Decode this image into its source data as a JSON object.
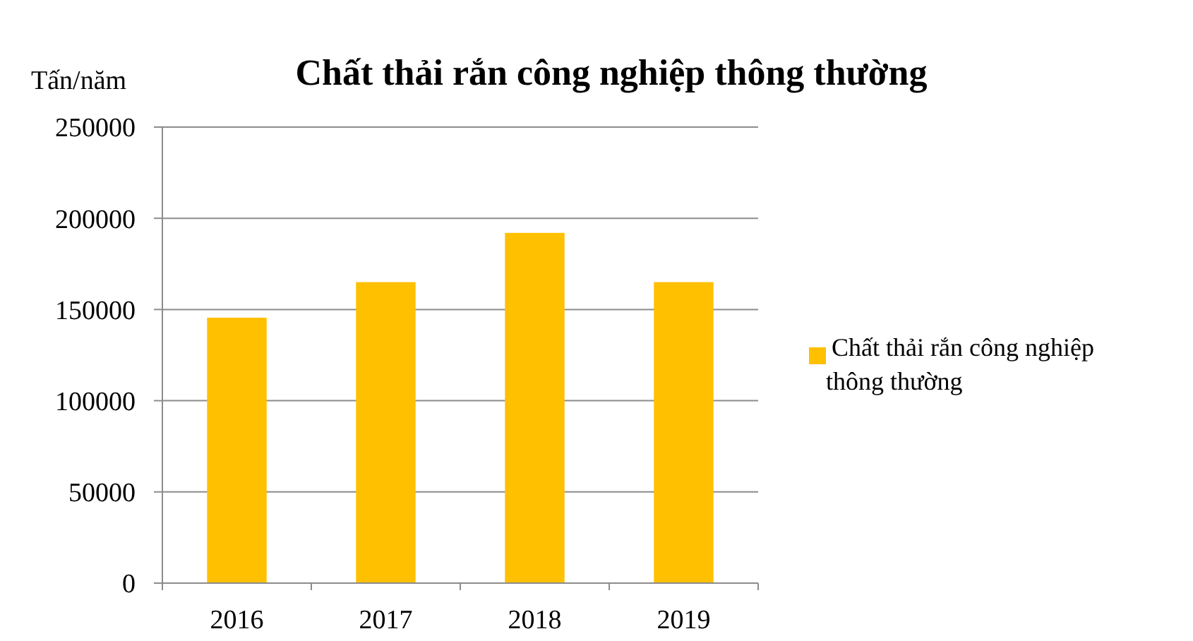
{
  "chart_data": {
    "type": "bar",
    "title": "Chất thải rắn công nghiệp thông thường",
    "ylabel": "Tấn/năm",
    "categories": [
      "2016",
      "2017",
      "2018",
      "2019"
    ],
    "series": [
      {
        "name": "Chất thải rắn công nghiệp thông thường",
        "color": "#ffc000",
        "values": [
          145500,
          165000,
          192000,
          165000
        ]
      }
    ],
    "ylim": [
      0,
      250000
    ],
    "yticks": [
      0,
      50000,
      100000,
      150000,
      200000,
      250000
    ],
    "grid": "y",
    "legend": "right"
  }
}
